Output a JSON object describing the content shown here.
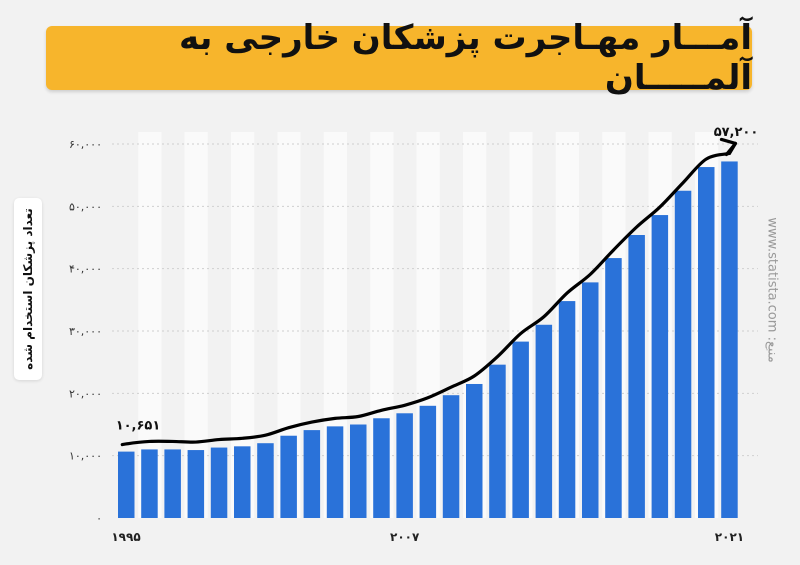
{
  "header": {
    "title": "آمـــار مهـاجرت پزشکان خارجی به آلمـــــان"
  },
  "source": {
    "text": "منبع: www.statista.com"
  },
  "chart_data": {
    "type": "bar",
    "title": "آمـــار مهـاجرت پزشکان خارجی به آلمـــــان",
    "ylabel": "تعداد پزشکان استخدام شده",
    "xlabel": "",
    "x_ticks": [
      "۱۹۹۵",
      "۲۰۰۷",
      "۲۰۲۱"
    ],
    "y_ticks": [
      "۰",
      "۱۰,۰۰۰",
      "۲۰,۰۰۰",
      "۳۰,۰۰۰",
      "۴۰,۰۰۰",
      "۵۰,۰۰۰",
      "۶۰,۰۰۰"
    ],
    "ylim": [
      0,
      60000
    ],
    "grid": true,
    "categories": [
      1995,
      1996,
      1997,
      1998,
      1999,
      2000,
      2001,
      2002,
      2003,
      2004,
      2005,
      2006,
      2007,
      2008,
      2009,
      2010,
      2011,
      2012,
      2013,
      2014,
      2015,
      2016,
      2017,
      2018,
      2019,
      2020,
      2021
    ],
    "values": [
      10651,
      11000,
      11000,
      10900,
      11300,
      11500,
      12000,
      13200,
      14100,
      14700,
      15000,
      16000,
      16800,
      18000,
      19700,
      21500,
      24600,
      28300,
      31000,
      34800,
      37800,
      41700,
      45400,
      48600,
      52500,
      56300,
      57200
    ],
    "annotations": [
      {
        "label": "۱۰,۶۵۱",
        "category": 1995
      },
      {
        "label": "۵۷,۲۰۰",
        "category": 2021
      }
    ],
    "trend_arrow": true,
    "colors": {
      "bar": "#2a72d9",
      "band": "#fafafa",
      "grid": "#cfcfcf",
      "arrow": "#000000"
    }
  }
}
